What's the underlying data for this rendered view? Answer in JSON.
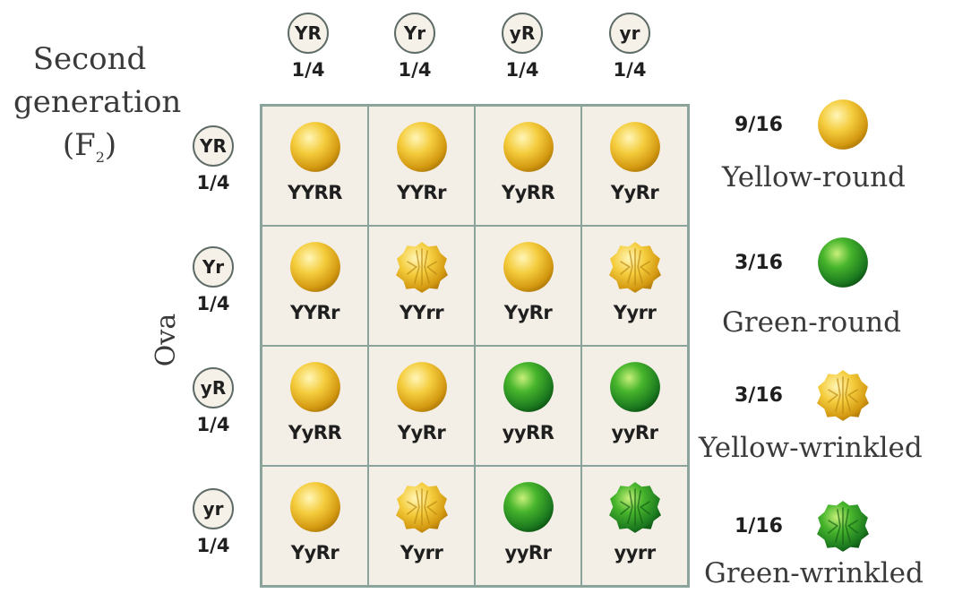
{
  "title": {
    "line1": "Second",
    "line2": "generation",
    "line3_main": "(F",
    "line3_sub": "2",
    "line3_end": ")"
  },
  "side_label": "Ova",
  "sperm_alleles": [
    {
      "allele": "YR",
      "fraction": "1/4"
    },
    {
      "allele": "Yr",
      "fraction": "1/4"
    },
    {
      "allele": "yR",
      "fraction": "1/4"
    },
    {
      "allele": "yr",
      "fraction": "1/4"
    }
  ],
  "ova_alleles": [
    {
      "allele": "YR",
      "fraction": "1/4"
    },
    {
      "allele": "Yr",
      "fraction": "1/4"
    },
    {
      "allele": "yR",
      "fraction": "1/4"
    },
    {
      "allele": "yr",
      "fraction": "1/4"
    }
  ],
  "grid": [
    [
      {
        "genotype": "YYRR",
        "phenotype": "yellow-round"
      },
      {
        "genotype": "YYRr",
        "phenotype": "yellow-round"
      },
      {
        "genotype": "YyRR",
        "phenotype": "yellow-round"
      },
      {
        "genotype": "YyRr",
        "phenotype": "yellow-round"
      }
    ],
    [
      {
        "genotype": "YYRr",
        "phenotype": "yellow-round"
      },
      {
        "genotype": "YYrr",
        "phenotype": "yellow-wrinkled"
      },
      {
        "genotype": "YyRr",
        "phenotype": "yellow-round"
      },
      {
        "genotype": "Yyrr",
        "phenotype": "yellow-wrinkled"
      }
    ],
    [
      {
        "genotype": "YyRR",
        "phenotype": "yellow-round"
      },
      {
        "genotype": "YyRr",
        "phenotype": "yellow-round"
      },
      {
        "genotype": "yyRR",
        "phenotype": "green-round"
      },
      {
        "genotype": "yyRr",
        "phenotype": "green-round"
      }
    ],
    [
      {
        "genotype": "YyRr",
        "phenotype": "yellow-round"
      },
      {
        "genotype": "Yyrr",
        "phenotype": "yellow-wrinkled"
      },
      {
        "genotype": "yyRr",
        "phenotype": "green-round"
      },
      {
        "genotype": "yyrr",
        "phenotype": "green-wrinkled"
      }
    ]
  ],
  "legend": [
    {
      "fraction": "9/16",
      "label": "Yellow-round",
      "phenotype": "yellow-round"
    },
    {
      "fraction": "3/16",
      "label": "Green-round",
      "phenotype": "green-round"
    },
    {
      "fraction": "3/16",
      "label": "Yellow-wrinkled",
      "phenotype": "yellow-wrinkled"
    },
    {
      "fraction": "1/16",
      "label": "Green-wrinkled",
      "phenotype": "green-wrinkled"
    }
  ],
  "colors": {
    "yellow": "#f2c230",
    "green": "#2f9a2a",
    "grid_bg": "#f3efe6",
    "grid_line": "#8aa39b"
  }
}
